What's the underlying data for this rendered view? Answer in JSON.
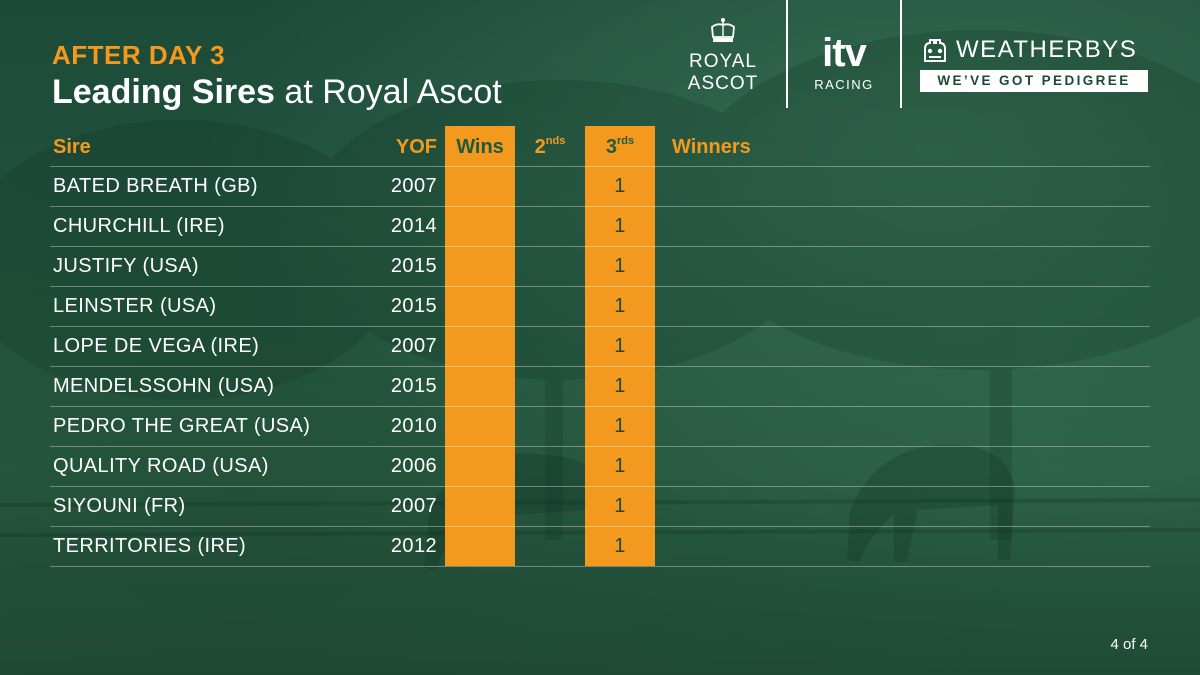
{
  "header": {
    "kicker": "AFTER DAY 3",
    "title_bold": "Leading Sires",
    "title_rest": " at Royal Ascot"
  },
  "logos": {
    "royal_ascot_line1": "ROYAL",
    "royal_ascot_line2": "ASCOT",
    "itv_word": "itv",
    "itv_sub": "RACING",
    "weatherbys_name": "WEATHERBYS",
    "weatherbys_tagline": "WE’VE GOT PEDIGREE"
  },
  "table": {
    "headers": {
      "sire": "Sire",
      "yof": "YOF",
      "wins": "Wins",
      "seconds": "2",
      "seconds_sup": "nds",
      "thirds": "3",
      "thirds_sup": "rds",
      "winners": "Winners"
    },
    "rows": [
      {
        "sire": "BATED BREATH (GB)",
        "yof": "2007",
        "wins": "",
        "seconds": "",
        "thirds": "1",
        "winners": ""
      },
      {
        "sire": "CHURCHILL (IRE)",
        "yof": "2014",
        "wins": "",
        "seconds": "",
        "thirds": "1",
        "winners": ""
      },
      {
        "sire": "JUSTIFY (USA)",
        "yof": "2015",
        "wins": "",
        "seconds": "",
        "thirds": "1",
        "winners": ""
      },
      {
        "sire": "LEINSTER (USA)",
        "yof": "2015",
        "wins": "",
        "seconds": "",
        "thirds": "1",
        "winners": ""
      },
      {
        "sire": "LOPE DE VEGA (IRE)",
        "yof": "2007",
        "wins": "",
        "seconds": "",
        "thirds": "1",
        "winners": ""
      },
      {
        "sire": "MENDELSSOHN (USA)",
        "yof": "2015",
        "wins": "",
        "seconds": "",
        "thirds": "1",
        "winners": ""
      },
      {
        "sire": "PEDRO THE GREAT (USA)",
        "yof": "2010",
        "wins": "",
        "seconds": "",
        "thirds": "1",
        "winners": ""
      },
      {
        "sire": "QUALITY ROAD (USA)",
        "yof": "2006",
        "wins": "",
        "seconds": "",
        "thirds": "1",
        "winners": ""
      },
      {
        "sire": "SIYOUNI (FR)",
        "yof": "2007",
        "wins": "",
        "seconds": "",
        "thirds": "1",
        "winners": ""
      },
      {
        "sire": "TERRITORIES (IRE)",
        "yof": "2012",
        "wins": "",
        "seconds": "",
        "thirds": "1",
        "winners": ""
      }
    ]
  },
  "page_indicator": "4 of 4",
  "colors": {
    "accent_orange": "#f39a1e",
    "background_green": "#23563f",
    "text_white": "#ffffff"
  }
}
